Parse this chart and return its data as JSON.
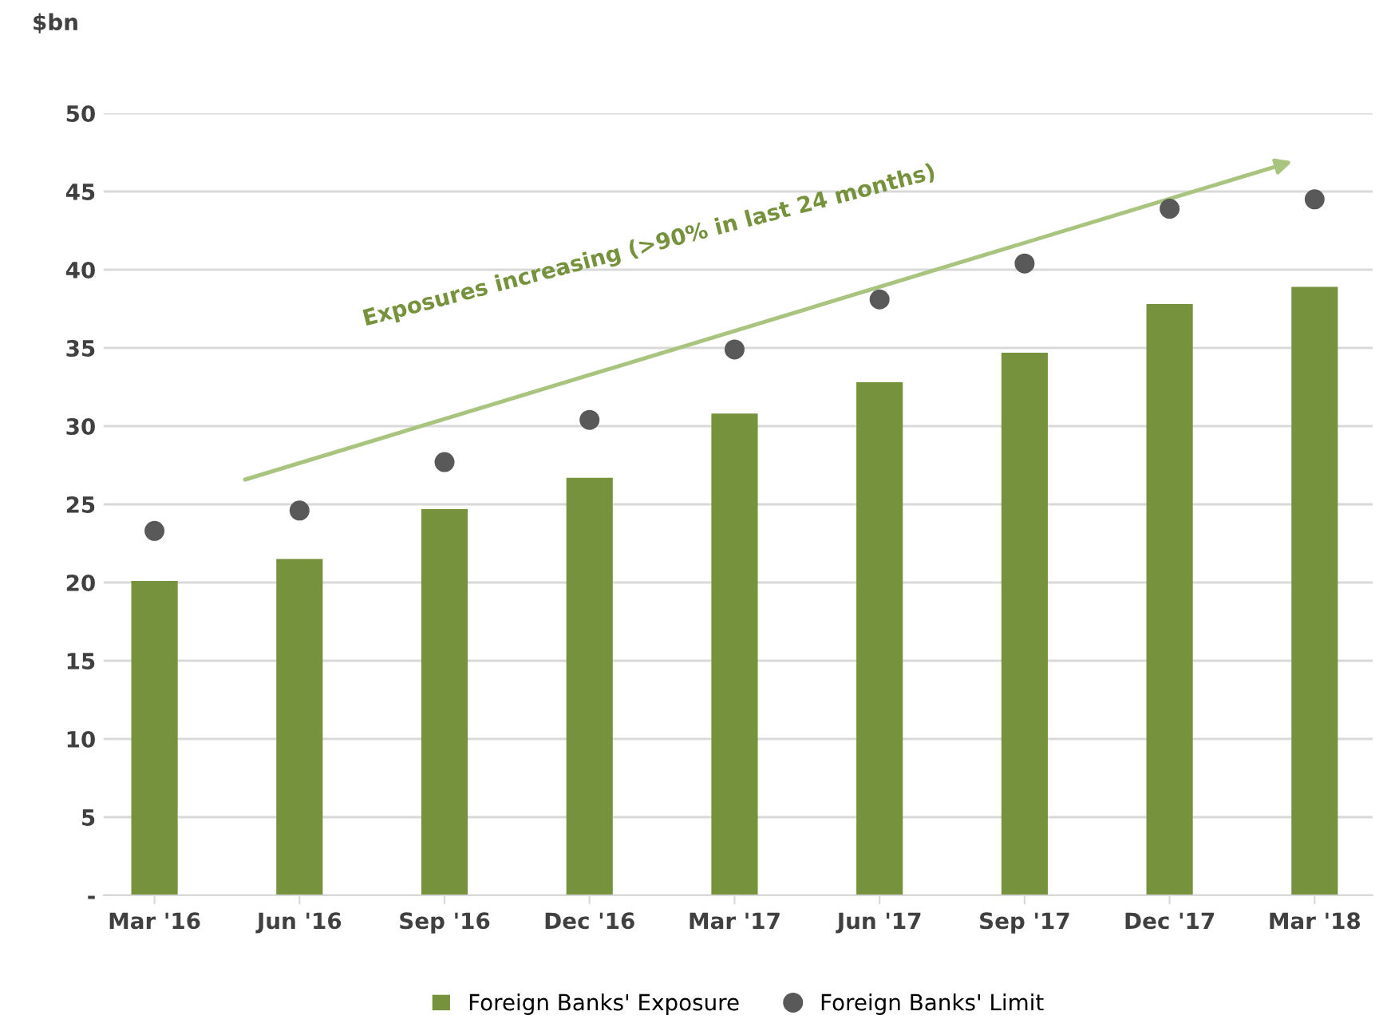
{
  "chart_data": {
    "type": "bar",
    "ylabel": "$bn",
    "categories": [
      "Mar '16",
      "Jun '16",
      "Sep '16",
      "Dec '16",
      "Mar '17",
      "Jun '17",
      "Sep '17",
      "Dec '17",
      "Mar '18"
    ],
    "series": [
      {
        "name": "Foreign Banks' Exposure",
        "color": "#76923c",
        "values": [
          20.1,
          21.5,
          24.7,
          26.7,
          30.8,
          32.8,
          34.7,
          37.8,
          38.9
        ]
      },
      {
        "name": "Foreign Banks' Limit",
        "type": "scatter",
        "color": "#595959",
        "marker": "circle",
        "values": [
          23.3,
          24.6,
          27.7,
          30.4,
          34.9,
          38.1,
          40.4,
          43.9,
          44.5
        ]
      }
    ],
    "ylim": [
      0,
      50
    ],
    "yticks": [
      {
        "value": 0,
        "label": "-"
      },
      5,
      10,
      15,
      20,
      25,
      30,
      35,
      40,
      45,
      50
    ],
    "grid": "y",
    "legend": "bottom",
    "annotations": [
      "Exposures increasing (>90% in last 24 months)"
    ]
  }
}
